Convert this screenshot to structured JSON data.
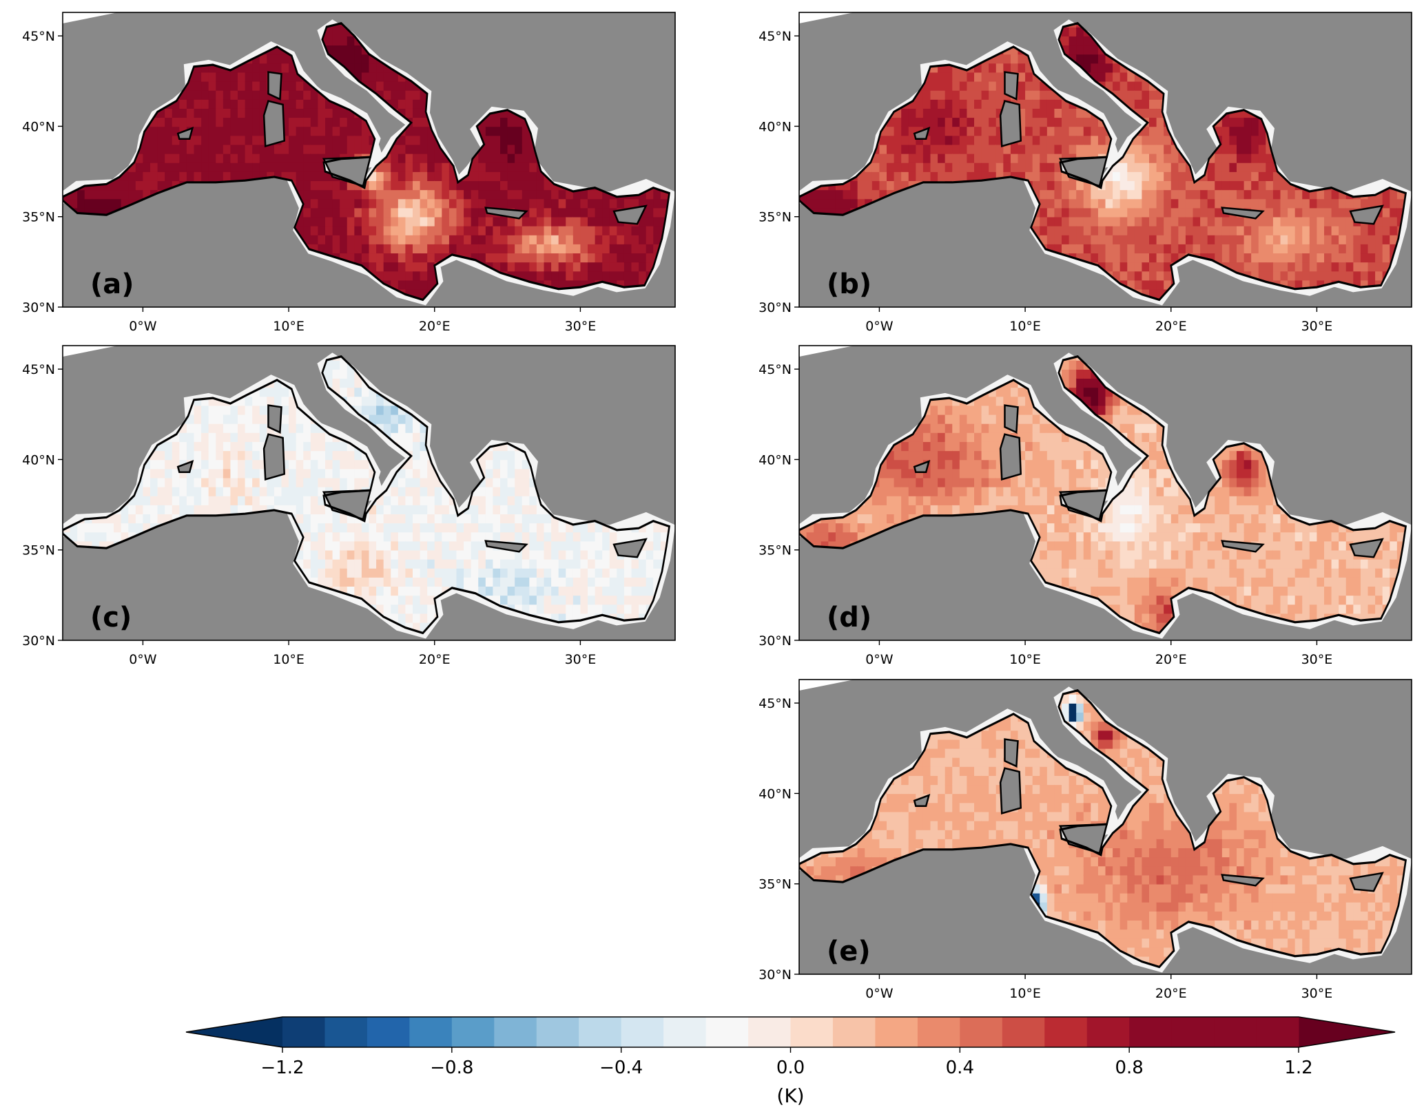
{
  "chart_data": [
    {
      "type": "heatmap",
      "panel_label": "(a)",
      "xticks": [
        "0°W",
        "10°E",
        "20°E",
        "30°E"
      ],
      "xtick_values": [
        0,
        10,
        20,
        30
      ],
      "yticks": [
        "30°N",
        "35°N",
        "40°N",
        "45°N"
      ],
      "ytick_values": [
        30,
        35,
        40,
        45
      ],
      "xlim": [
        -5.5,
        36.5
      ],
      "ylim": [
        30,
        46.3
      ],
      "bias_pattern": "strong positive bias over most of the basin; strongest (>1.2 K) in the Alboran Sea, northern Adriatic and Aegean; near zero in the central Ionian and Levantine interior"
    },
    {
      "type": "heatmap",
      "panel_label": "(b)",
      "xticks": [
        "0°W",
        "10°E",
        "20°E",
        "30°E"
      ],
      "xtick_values": [
        0,
        10,
        20,
        30
      ],
      "yticks": [
        "30°N",
        "35°N",
        "40°N",
        "45°N"
      ],
      "ytick_values": [
        30,
        35,
        40,
        45
      ],
      "xlim": [
        -5.5,
        36.5
      ],
      "ylim": [
        30,
        46.3
      ],
      "bias_pattern": "moderate positive bias (0.3–0.8 K); strongest in northern Adriatic and Alboran; slightly negative patch near Sicily Channel"
    },
    {
      "type": "heatmap",
      "panel_label": "(c)",
      "xticks": [
        "0°W",
        "10°E",
        "20°E",
        "30°E"
      ],
      "xtick_values": [
        0,
        10,
        20,
        30
      ],
      "yticks": [
        "30°N",
        "35°N",
        "40°N",
        "45°N"
      ],
      "ytick_values": [
        30,
        35,
        40,
        45
      ],
      "xlim": [
        -5.5,
        36.5
      ],
      "ylim": [
        30,
        46.3
      ],
      "bias_pattern": "small negative bias (-0.1 to -0.5 K) over most of the basin; strongest negative in the Adriatic; small positive patches in the Ionian"
    },
    {
      "type": "heatmap",
      "panel_label": "(d)",
      "xticks": [
        "0°W",
        "10°E",
        "20°E",
        "30°E"
      ],
      "xtick_values": [
        0,
        10,
        20,
        30
      ],
      "yticks": [
        "30°N",
        "35°N",
        "40°N",
        "45°N"
      ],
      "ytick_values": [
        30,
        35,
        40,
        45
      ],
      "xlim": [
        -5.5,
        36.5
      ],
      "ylim": [
        30,
        46.3
      ],
      "bias_pattern": "weak positive bias (0.1–0.4 K) in the eastern basin; moderate positive in the western basin; strong positive in northern Adriatic and northern Aegean"
    },
    {
      "type": "heatmap",
      "panel_label": "(e)",
      "xticks": [
        "0°W",
        "10°E",
        "20°E",
        "30°E"
      ],
      "xtick_values": [
        0,
        10,
        20,
        30
      ],
      "yticks": [
        "30°N",
        "35°N",
        "40°N",
        "45°N"
      ],
      "ytick_values": [
        30,
        35,
        40,
        45
      ],
      "xlim": [
        -5.5,
        36.5
      ],
      "ylim": [
        30,
        46.3
      ],
      "bias_pattern": "weak positive bias (0.1–0.5 K) over most of the basin; strong negative patches in the northern Adriatic and Gulf of Gabes"
    }
  ],
  "colorbar": {
    "ticks": [
      "−1.2",
      "−0.8",
      "−0.4",
      "0.0",
      "0.4",
      "0.8",
      "1.2"
    ],
    "tick_values": [
      -1.2,
      -0.8,
      -0.4,
      0.0,
      0.4,
      0.8,
      1.2
    ],
    "label": "(K)",
    "min": -1.2,
    "max": 1.2,
    "step": 0.1,
    "extend": "both",
    "colors": [
      "#053061",
      "#0e3e75",
      "#195693",
      "#2265ab",
      "#3a83bc",
      "#5a9dc9",
      "#7fb4d6",
      "#9fc7e0",
      "#bcd9ea",
      "#d4e6f1",
      "#e8f0f4",
      "#f7f7f7",
      "#f9ebe5",
      "#fbdcca",
      "#f7c3a8",
      "#f4a784",
      "#ea8a6c",
      "#dc6d58",
      "#cd4e45",
      "#bb2b32",
      "#a2152b",
      "#8a0927",
      "#67001f"
    ],
    "under_color": "#053061",
    "over_color": "#67001f"
  },
  "colors": {
    "land": "#898989",
    "missing": "#f4f4f4",
    "coast": "#000000"
  }
}
